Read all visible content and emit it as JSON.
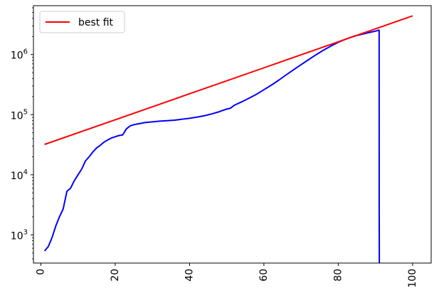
{
  "chart_data": {
    "type": "line",
    "title": "",
    "xlabel": "",
    "ylabel": "",
    "xlim": [
      -2,
      105
    ],
    "ylim": [
      340,
      6500000
    ],
    "yscale": "log",
    "grid": false,
    "legend": {
      "placement": "top-left",
      "entries": [
        "best fit"
      ]
    },
    "x_ticks": [
      0,
      20,
      40,
      60,
      80,
      100
    ],
    "x_tick_labels": [
      "0",
      "20",
      "40",
      "60",
      "80",
      "100"
    ],
    "x_tick_rotation": 90,
    "y_ticks": [
      1000,
      10000,
      100000,
      1000000
    ],
    "y_tick_labels": [
      {
        "base": "10",
        "exp": "3"
      },
      {
        "base": "10",
        "exp": "4"
      },
      {
        "base": "10",
        "exp": "5"
      },
      {
        "base": "10",
        "exp": "6"
      }
    ],
    "series": [
      {
        "name": "",
        "color": "#0000ff",
        "points": [
          [
            1,
            540
          ],
          [
            2,
            640
          ],
          [
            3,
            900
          ],
          [
            4,
            1400
          ],
          [
            5,
            2000
          ],
          [
            6,
            2700
          ],
          [
            7,
            5300
          ],
          [
            8,
            6000
          ],
          [
            9,
            8000
          ],
          [
            10,
            10000
          ],
          [
            11,
            12500
          ],
          [
            12,
            17000
          ],
          [
            13,
            20000
          ],
          [
            14,
            24000
          ],
          [
            15,
            28000
          ],
          [
            16,
            31000
          ],
          [
            17,
            35000
          ],
          [
            18,
            38000
          ],
          [
            19,
            41000
          ],
          [
            20,
            43000
          ],
          [
            21,
            45000
          ],
          [
            22,
            46000
          ],
          [
            23,
            58000
          ],
          [
            24,
            65000
          ],
          [
            25,
            68000
          ],
          [
            26,
            70000
          ],
          [
            27,
            72000
          ],
          [
            28,
            74000
          ],
          [
            29,
            75000
          ],
          [
            30,
            76000
          ],
          [
            31,
            77000
          ],
          [
            32,
            78000
          ],
          [
            34,
            79500
          ],
          [
            36,
            81000
          ],
          [
            38,
            84000
          ],
          [
            40,
            87000
          ],
          [
            42,
            91000
          ],
          [
            44,
            96000
          ],
          [
            46,
            103000
          ],
          [
            48,
            112000
          ],
          [
            49,
            118000
          ],
          [
            50,
            124000
          ],
          [
            51,
            128000
          ],
          [
            52,
            143000
          ],
          [
            54,
            163000
          ],
          [
            56,
            188000
          ],
          [
            58,
            218000
          ],
          [
            60,
            260000
          ],
          [
            62,
            310000
          ],
          [
            64,
            375000
          ],
          [
            66,
            460000
          ],
          [
            68,
            560000
          ],
          [
            70,
            680000
          ],
          [
            72,
            820000
          ],
          [
            74,
            990000
          ],
          [
            76,
            1180000
          ],
          [
            78,
            1380000
          ],
          [
            80,
            1600000
          ],
          [
            82,
            1800000
          ],
          [
            84,
            2000000
          ],
          [
            86,
            2150000
          ],
          [
            88,
            2300000
          ],
          [
            90,
            2450000
          ],
          [
            91,
            2550000
          ],
          [
            91.02,
            2400
          ],
          [
            91.05,
            340
          ]
        ]
      },
      {
        "name": "best fit",
        "color": "#ff0000",
        "points": [
          [
            1,
            32000
          ],
          [
            100,
            4400000
          ]
        ]
      }
    ]
  }
}
